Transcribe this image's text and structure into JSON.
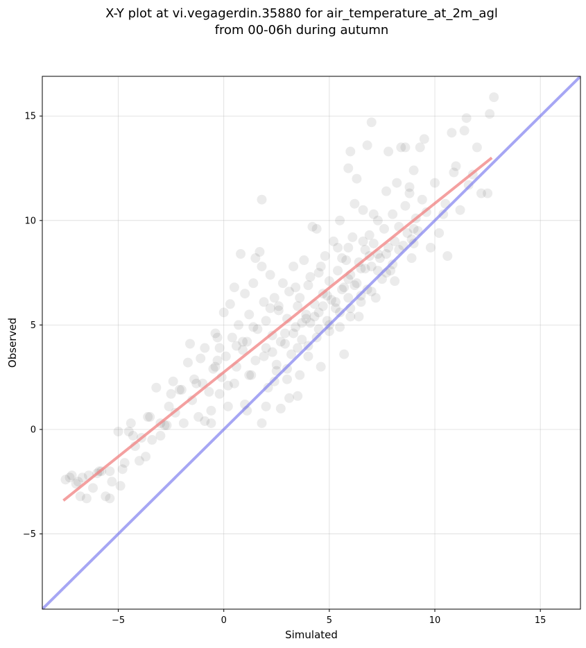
{
  "title_line1": "X-Y plot at vi.vegagerdin.35880 for air_temperature_at_2m_agl",
  "title_line2": "from 00-06h during autumn",
  "chart_data": {
    "type": "scatter",
    "xlabel": "Simulated",
    "ylabel": "Observed",
    "xlim": [
      -8.6,
      16.9
    ],
    "ylim": [
      -8.6,
      16.9
    ],
    "xticks": [
      -5,
      0,
      5,
      10,
      15
    ],
    "yticks": [
      -5,
      0,
      5,
      10,
      15
    ],
    "xtick_labels": [
      "−5",
      "0",
      "5",
      "10",
      "15"
    ],
    "ytick_labels": [
      "−5",
      "0",
      "5",
      "10",
      "15"
    ],
    "grid": true,
    "point_color": "#000000",
    "point_alpha": 0.08,
    "regression_line": {
      "color": "#f08080",
      "x": [
        -7.6,
        12.7
      ],
      "y": [
        -3.4,
        13.0
      ]
    },
    "identity_line": {
      "color": "#7777ee",
      "x": [
        -8.6,
        16.9
      ],
      "y": [
        -8.6,
        16.9
      ]
    },
    "points": [
      [
        -7.5,
        -2.4
      ],
      [
        -7.3,
        -2.3
      ],
      [
        -7.0,
        -2.6
      ],
      [
        -6.8,
        -3.2
      ],
      [
        -6.7,
        -2.3
      ],
      [
        -6.5,
        -3.3
      ],
      [
        -6.4,
        -2.2
      ],
      [
        -6.2,
        -2.8
      ],
      [
        -6.0,
        -2.1
      ],
      [
        -5.8,
        -2.0
      ],
      [
        -5.6,
        -3.2
      ],
      [
        -5.4,
        -2.0
      ],
      [
        -5.3,
        -2.5
      ],
      [
        -5.0,
        -0.1
      ],
      [
        -4.9,
        -2.7
      ],
      [
        -4.7,
        -1.6
      ],
      [
        -4.5,
        -0.1
      ],
      [
        -4.4,
        0.3
      ],
      [
        -4.2,
        -0.8
      ],
      [
        -4.0,
        -1.5
      ],
      [
        -3.9,
        -0.4
      ],
      [
        -3.7,
        -1.3
      ],
      [
        -3.5,
        0.6
      ],
      [
        -3.4,
        -0.5
      ],
      [
        -3.2,
        2.0
      ],
      [
        -3.0,
        -0.3
      ],
      [
        -2.8,
        0.2
      ],
      [
        -2.6,
        1.1
      ],
      [
        -2.5,
        1.7
      ],
      [
        -2.3,
        0.8
      ],
      [
        -2.1,
        1.9
      ],
      [
        -1.9,
        0.3
      ],
      [
        -1.7,
        3.2
      ],
      [
        -1.5,
        1.4
      ],
      [
        -1.4,
        2.4
      ],
      [
        -1.2,
        0.6
      ],
      [
        -1.0,
        2.2
      ],
      [
        -0.9,
        3.9
      ],
      [
        -0.7,
        1.8
      ],
      [
        -0.6,
        0.3
      ],
      [
        -0.5,
        2.9
      ],
      [
        -0.4,
        4.6
      ],
      [
        -0.2,
        1.7
      ],
      [
        -0.1,
        2.5
      ],
      [
        0.0,
        5.6
      ],
      [
        0.1,
        3.5
      ],
      [
        0.2,
        1.1
      ],
      [
        0.3,
        6.0
      ],
      [
        0.4,
        4.4
      ],
      [
        0.5,
        2.2
      ],
      [
        0.6,
        3.0
      ],
      [
        0.7,
        5.0
      ],
      [
        0.8,
        8.4
      ],
      [
        0.9,
        3.8
      ],
      [
        1.0,
        6.5
      ],
      [
        1.0,
        1.2
      ],
      [
        1.1,
        4.2
      ],
      [
        1.2,
        5.5
      ],
      [
        1.3,
        2.6
      ],
      [
        1.4,
        7.0
      ],
      [
        1.5,
        3.3
      ],
      [
        1.6,
        4.8
      ],
      [
        1.7,
        8.5
      ],
      [
        1.8,
        11.0
      ],
      [
        1.8,
        0.3
      ],
      [
        1.9,
        6.1
      ],
      [
        2.0,
        3.9
      ],
      [
        2.0,
        5.2
      ],
      [
        2.1,
        2.0
      ],
      [
        2.2,
        7.4
      ],
      [
        2.3,
        4.5
      ],
      [
        2.4,
        6.3
      ],
      [
        2.5,
        3.1
      ],
      [
        2.6,
        5.7
      ],
      [
        2.7,
        1.0
      ],
      [
        2.8,
        7.0
      ],
      [
        2.9,
        4.1
      ],
      [
        3.0,
        5.3
      ],
      [
        3.0,
        2.4
      ],
      [
        3.1,
        6.6
      ],
      [
        3.2,
        3.6
      ],
      [
        3.3,
        7.8
      ],
      [
        3.4,
        4.9
      ],
      [
        3.5,
        5.9
      ],
      [
        3.5,
        1.6
      ],
      [
        3.6,
        6.3
      ],
      [
        3.7,
        4.3
      ],
      [
        3.8,
        8.1
      ],
      [
        3.9,
        5.5
      ],
      [
        4.0,
        3.5
      ],
      [
        4.0,
        6.9
      ],
      [
        4.1,
        5.1
      ],
      [
        4.2,
        9.7
      ],
      [
        4.3,
        6.0
      ],
      [
        4.4,
        4.4
      ],
      [
        4.5,
        7.5
      ],
      [
        4.5,
        5.6
      ],
      [
        4.6,
        3.0
      ],
      [
        4.7,
        6.5
      ],
      [
        4.8,
        8.3
      ],
      [
        4.9,
        5.2
      ],
      [
        5.0,
        7.1
      ],
      [
        5.0,
        4.7
      ],
      [
        5.1,
        6.2
      ],
      [
        5.2,
        9.0
      ],
      [
        5.3,
        5.8
      ],
      [
        5.4,
        7.6
      ],
      [
        5.5,
        4.9
      ],
      [
        5.5,
        10.0
      ],
      [
        5.6,
        6.7
      ],
      [
        5.7,
        3.6
      ],
      [
        5.8,
        8.1
      ],
      [
        5.9,
        6.3
      ],
      [
        6.0,
        7.4
      ],
      [
        6.0,
        5.4
      ],
      [
        6.1,
        9.2
      ],
      [
        6.2,
        6.9
      ],
      [
        6.3,
        12.0
      ],
      [
        6.4,
        8.0
      ],
      [
        6.5,
        6.1
      ],
      [
        6.5,
        7.7
      ],
      [
        6.6,
        10.5
      ],
      [
        6.7,
        8.6
      ],
      [
        6.8,
        6.7
      ],
      [
        6.9,
        9.3
      ],
      [
        7.0,
        7.8
      ],
      [
        7.0,
        14.7
      ],
      [
        7.1,
        8.9
      ],
      [
        7.2,
        6.3
      ],
      [
        7.3,
        10.0
      ],
      [
        7.4,
        8.2
      ],
      [
        7.5,
        7.2
      ],
      [
        7.6,
        9.6
      ],
      [
        7.7,
        11.4
      ],
      [
        7.8,
        8.7
      ],
      [
        7.9,
        7.6
      ],
      [
        8.0,
        10.3
      ],
      [
        8.1,
        9.0
      ],
      [
        8.2,
        11.8
      ],
      [
        8.3,
        9.7
      ],
      [
        8.4,
        13.5
      ],
      [
        8.5,
        8.8
      ],
      [
        8.6,
        10.7
      ],
      [
        8.7,
        9.4
      ],
      [
        8.8,
        11.3
      ],
      [
        8.9,
        9.1
      ],
      [
        9.0,
        12.4
      ],
      [
        9.1,
        10.1
      ],
      [
        9.2,
        9.5
      ],
      [
        9.4,
        11.0
      ],
      [
        9.5,
        13.9
      ],
      [
        9.6,
        10.4
      ],
      [
        9.8,
        8.7
      ],
      [
        10.0,
        11.8
      ],
      [
        10.2,
        9.4
      ],
      [
        10.5,
        10.8
      ],
      [
        10.6,
        8.3
      ],
      [
        10.8,
        14.2
      ],
      [
        11.0,
        12.6
      ],
      [
        11.2,
        10.5
      ],
      [
        11.4,
        14.3
      ],
      [
        11.6,
        11.7
      ],
      [
        11.8,
        12.2
      ],
      [
        12.0,
        13.5
      ],
      [
        12.2,
        11.3
      ],
      [
        12.5,
        11.3
      ],
      [
        12.6,
        15.1
      ],
      [
        12.8,
        15.9
      ],
      [
        11.5,
        14.9
      ],
      [
        9.3,
        13.5
      ],
      [
        6.0,
        13.3
      ],
      [
        5.9,
        12.5
      ],
      [
        6.8,
        13.6
      ],
      [
        7.8,
        13.3
      ],
      [
        8.6,
        13.5
      ],
      [
        10.4,
        10.3
      ],
      [
        9.0,
        8.9
      ],
      [
        7.7,
        7.5
      ],
      [
        3.6,
        2.6
      ],
      [
        2.0,
        1.1
      ],
      [
        1.5,
        8.2
      ],
      [
        1.8,
        7.8
      ],
      [
        0.5,
        6.8
      ],
      [
        -0.2,
        3.9
      ],
      [
        -1.6,
        4.1
      ],
      [
        -0.3,
        4.4
      ],
      [
        -1.3,
        2.2
      ],
      [
        -2.0,
        1.9
      ],
      [
        -0.9,
        0.4
      ],
      [
        -0.4,
        3.0
      ],
      [
        4.4,
        9.6
      ],
      [
        5.4,
        8.7
      ],
      [
        6.4,
        5.4
      ],
      [
        6.2,
        10.8
      ],
      [
        7.3,
        8.4
      ],
      [
        8.1,
        7.1
      ],
      [
        8.9,
        8.2
      ],
      [
        3.1,
        1.5
      ],
      [
        2.4,
        2.3
      ],
      [
        1.1,
        0.9
      ],
      [
        0.2,
        2.1
      ],
      [
        -0.6,
        0.9
      ],
      [
        -2.7,
        0.2
      ],
      [
        -3.6,
        0.6
      ],
      [
        -4.3,
        -0.3
      ],
      [
        -5.9,
        -2.0
      ],
      [
        -6.9,
        -2.5
      ],
      [
        -7.2,
        -2.2
      ],
      [
        -5.4,
        -3.3
      ],
      [
        -4.8,
        -1.9
      ],
      [
        -3.0,
        0.3
      ],
      [
        -2.4,
        2.3
      ],
      [
        -1.1,
        3.4
      ],
      [
        0.9,
        4.2
      ],
      [
        2.6,
        5.9
      ],
      [
        4.1,
        7.3
      ],
      [
        5.9,
        8.7
      ],
      [
        7.1,
        10.3
      ],
      [
        8.8,
        11.6
      ],
      [
        10.9,
        12.3
      ],
      [
        1.2,
        2.6
      ],
      [
        2.3,
        3.7
      ],
      [
        3.3,
        4.6
      ],
      [
        4.3,
        5.4
      ],
      [
        5.3,
        6.1
      ],
      [
        6.3,
        7.0
      ],
      [
        7.3,
        7.6
      ],
      [
        8.3,
        8.6
      ],
      [
        2.7,
        4.2
      ],
      [
        3.7,
        5.1
      ],
      [
        4.7,
        5.9
      ],
      [
        5.7,
        6.8
      ],
      [
        6.7,
        7.7
      ],
      [
        7.7,
        8.4
      ],
      [
        1.9,
        3.5
      ],
      [
        2.9,
        4.6
      ],
      [
        3.9,
        5.3
      ],
      [
        4.9,
        6.4
      ],
      [
        5.9,
        7.2
      ],
      [
        6.9,
        8.3
      ],
      [
        3.4,
        6.8
      ],
      [
        4.6,
        7.8
      ],
      [
        5.6,
        8.2
      ],
      [
        6.6,
        9.0
      ],
      [
        2.2,
        5.8
      ],
      [
        1.4,
        4.9
      ],
      [
        0.6,
        4.0
      ],
      [
        -0.3,
        3.3
      ],
      [
        3.0,
        2.9
      ],
      [
        4.0,
        4.0
      ],
      [
        5.0,
        5.0
      ],
      [
        6.0,
        5.8
      ],
      [
        7.0,
        6.6
      ],
      [
        8.0,
        7.9
      ],
      [
        9.0,
        9.6
      ],
      [
        2.5,
        2.8
      ],
      [
        3.5,
        3.9
      ],
      [
        4.5,
        4.8
      ],
      [
        5.5,
        5.6
      ],
      [
        6.5,
        6.4
      ]
    ]
  }
}
